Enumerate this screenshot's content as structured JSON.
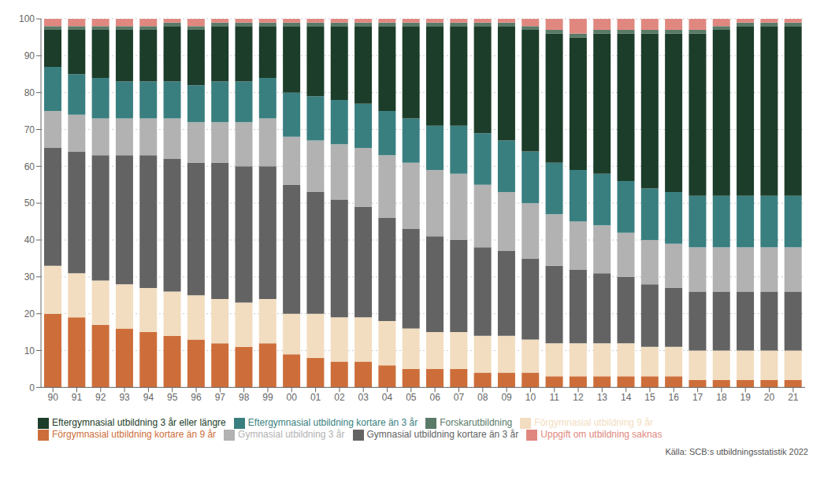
{
  "chart_data": {
    "type": "bar",
    "stacked": true,
    "grid": true,
    "legend": "bottom",
    "categories": [
      "90",
      "91",
      "92",
      "93",
      "94",
      "95",
      "96",
      "97",
      "98",
      "99",
      "00",
      "01",
      "02",
      "03",
      "04",
      "05",
      "06",
      "07",
      "08",
      "09",
      "10",
      "11",
      "12",
      "13",
      "14",
      "15",
      "16",
      "17",
      "18",
      "19",
      "20",
      "21"
    ],
    "series": [
      {
        "name": "Förgymnasial utbildning kortare än 9 år",
        "color": "#cd6e3a",
        "values": [
          20,
          19,
          17,
          16,
          15,
          14,
          13,
          12,
          11,
          12,
          9,
          8,
          7,
          7,
          6,
          5,
          5,
          5,
          4,
          4,
          4,
          3,
          3,
          3,
          3,
          3,
          3,
          2,
          2,
          2,
          2,
          2
        ]
      },
      {
        "name": "Förgymnasial utbildning 9 år",
        "color": "#f2ddc0",
        "values": [
          13,
          12,
          12,
          12,
          12,
          12,
          12,
          12,
          12,
          12,
          11,
          12,
          12,
          12,
          12,
          11,
          10,
          10,
          10,
          10,
          9,
          9,
          9,
          9,
          9,
          8,
          8,
          8,
          8,
          8,
          8,
          8
        ]
      },
      {
        "name": "Gymnasial utbildning kortare än 3 år",
        "color": "#636363",
        "values": [
          32,
          33,
          34,
          35,
          36,
          36,
          36,
          37,
          37,
          36,
          35,
          33,
          32,
          30,
          28,
          27,
          26,
          25,
          24,
          23,
          22,
          21,
          20,
          19,
          18,
          17,
          16,
          16,
          16,
          16,
          16,
          16
        ]
      },
      {
        "name": "Gymnasial utbildning 3 år",
        "color": "#b2b2b2",
        "values": [
          10,
          10,
          10,
          10,
          10,
          11,
          11,
          11,
          12,
          13,
          13,
          14,
          15,
          16,
          17,
          18,
          18,
          18,
          17,
          16,
          15,
          14,
          13,
          13,
          12,
          12,
          12,
          12,
          12,
          12,
          12,
          12
        ]
      },
      {
        "name": "Eftergymnasial utbildning kortare än 3 år",
        "color": "#3a7f80",
        "values": [
          12,
          11,
          11,
          10,
          10,
          10,
          10,
          11,
          11,
          11,
          12,
          12,
          12,
          12,
          12,
          12,
          12,
          13,
          14,
          14,
          14,
          14,
          14,
          14,
          14,
          14,
          14,
          14,
          14,
          14,
          14,
          14
        ]
      },
      {
        "name": "Eftergymnasial utbildning 3 år eller längre",
        "color": "#1c3d2a",
        "values": [
          10,
          12,
          13,
          14,
          14,
          15,
          15,
          15,
          15,
          14,
          18,
          19,
          20,
          21,
          23,
          25,
          27,
          27,
          29,
          31,
          33,
          35,
          36,
          38,
          40,
          42,
          43,
          44,
          45,
          46,
          46,
          46
        ]
      },
      {
        "name": "Forskarutbildning",
        "color": "#5a7a68",
        "values": [
          1,
          1,
          1,
          1,
          1,
          1,
          1,
          1,
          1,
          1,
          1,
          1,
          1,
          1,
          1,
          1,
          1,
          1,
          1,
          1,
          1,
          1,
          1,
          1,
          1,
          1,
          1,
          1,
          1,
          1,
          1,
          1
        ]
      },
      {
        "name": "Uppgift om utbildning saknas",
        "color": "#e08880",
        "values": [
          2,
          2,
          2,
          2,
          2,
          1,
          2,
          1,
          1,
          1,
          1,
          1,
          1,
          1,
          1,
          1,
          1,
          1,
          1,
          1,
          2,
          3,
          4,
          3,
          3,
          3,
          3,
          3,
          2,
          1,
          1,
          1
        ]
      }
    ],
    "ylim": [
      0,
      100
    ],
    "yticks": [
      0,
      10,
      20,
      30,
      40,
      50,
      60,
      70,
      80,
      90,
      100
    ],
    "annotations": [
      "Källa: SCB:s utbildningsstatistik 2022"
    ]
  }
}
